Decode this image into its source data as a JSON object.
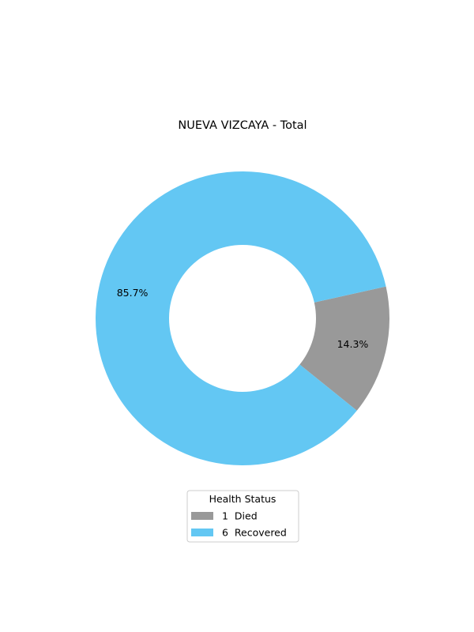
{
  "chart_data": {
    "type": "pie",
    "title": "NUEVA VIZCAYA - Total",
    "donut": true,
    "series": [
      {
        "label": "Died",
        "count_label": "1",
        "value": 1,
        "percent_label": "14.3%",
        "color": "#999999"
      },
      {
        "label": "Recovered",
        "count_label": "6",
        "value": 6,
        "percent_label": "85.7%",
        "color": "#63c7f3"
      }
    ],
    "legend": {
      "title": "Health Status",
      "placement": "bottom-center"
    }
  }
}
